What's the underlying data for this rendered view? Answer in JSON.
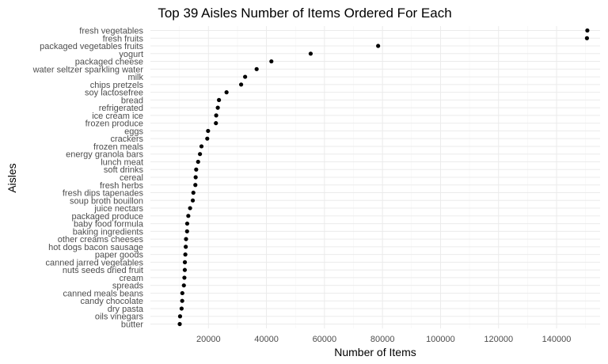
{
  "chart_data": {
    "type": "scatter",
    "title": "Top 39 Aisles Number of Items Ordered For Each",
    "xlabel": "Number of Items",
    "ylabel": "Aisles",
    "xlim": [
      0,
      155000
    ],
    "x_ticks": [
      20000,
      40000,
      60000,
      80000,
      100000,
      120000,
      140000
    ],
    "grid": true,
    "point_color": "#000000",
    "categories": [
      "fresh vegetables",
      "fresh fruits",
      "packaged vegetables fruits",
      "yogurt",
      "packaged cheese",
      "water seltzer sparkling water",
      "milk",
      "chips pretzels",
      "soy lactosefree",
      "bread",
      "refrigerated",
      "ice cream ice",
      "frozen produce",
      "eggs",
      "crackers",
      "frozen meals",
      "energy granola bars",
      "lunch meat",
      "soft drinks",
      "cereal",
      "fresh herbs",
      "fresh dips tapenades",
      "soup broth bouillon",
      "juice nectars",
      "packaged produce",
      "baby food formula",
      "baking ingredients",
      "other creams cheeses",
      "hot dogs bacon sausage",
      "paper goods",
      "canned jarred vegetables",
      "nuts seeds dried fruit",
      "cream",
      "spreads",
      "canned meals beans",
      "candy chocolate",
      "dry pasta",
      "oils vinegars",
      "butter"
    ],
    "values": [
      150609,
      150473,
      78493,
      55240,
      41699,
      36617,
      32644,
      31269,
      26240,
      23635,
      23228,
      22676,
      22583,
      19875,
      19592,
      17604,
      17086,
      16440,
      15779,
      15599,
      15493,
      14802,
      14611,
      13677,
      13058,
      12678,
      12634,
      12281,
      12183,
      12037,
      11880,
      11855,
      11715,
      11530,
      10998,
      10955,
      10748,
      10220,
      10107
    ]
  }
}
